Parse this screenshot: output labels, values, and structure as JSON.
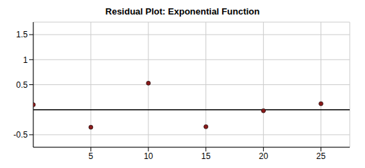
{
  "chart_data": {
    "type": "scatter",
    "title": "Residual Plot: Exponential Function",
    "x": [
      0,
      5,
      10,
      15,
      20,
      25
    ],
    "values": [
      0.1,
      -0.35,
      0.53,
      -0.34,
      -0.02,
      0.12
    ],
    "color": "#8b1a1a",
    "xlim": [
      0,
      27.5
    ],
    "xticks": [
      5,
      10,
      15,
      20,
      25
    ],
    "ylim": [
      -0.75,
      1.75
    ],
    "yticks": [
      -0.5,
      0.5,
      1,
      1.5
    ],
    "grid": true,
    "marker": "circle"
  }
}
